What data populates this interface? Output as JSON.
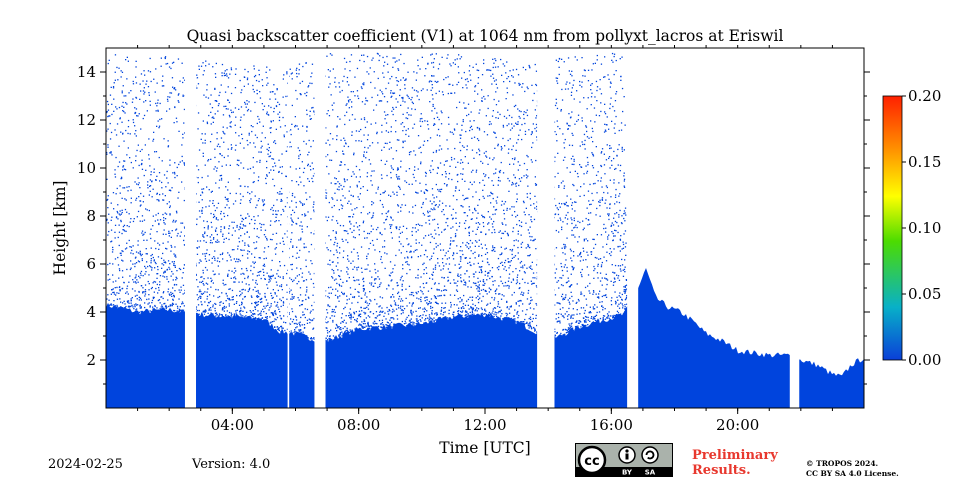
{
  "chart_data": {
    "type": "heatmap",
    "title": "Quasi backscatter coefficient (V1) at 1064 nm from pollyxt_lacros at Eriswil",
    "xlabel": "Time [UTC]",
    "ylabel": "Height [km]",
    "xlim_hours": [
      0,
      24
    ],
    "ylim_km": [
      0,
      15
    ],
    "x_ticks": [
      {
        "hour": 4,
        "label": "04:00"
      },
      {
        "hour": 8,
        "label": "08:00"
      },
      {
        "hour": 12,
        "label": "12:00"
      },
      {
        "hour": 16,
        "label": "16:00"
      },
      {
        "hour": 20,
        "label": "20:00"
      }
    ],
    "y_ticks": [
      {
        "km": 2,
        "label": "2"
      },
      {
        "km": 4,
        "label": "4"
      },
      {
        "km": 6,
        "label": "6"
      },
      {
        "km": 8,
        "label": "8"
      },
      {
        "km": 10,
        "label": "10"
      },
      {
        "km": 12,
        "label": "12"
      },
      {
        "km": 14,
        "label": "14"
      }
    ],
    "colorbar": {
      "min": 0.0,
      "max": 0.2,
      "ticks": [
        "0.00",
        "0.05",
        "0.10",
        "0.15",
        "0.20"
      ],
      "tick_values": [
        0.0,
        0.05,
        0.1,
        0.15,
        0.2
      ],
      "colors": [
        "#0a3fd8",
        "#08b0c8",
        "#4cdc00",
        "#ffff00",
        "#ff9000",
        "#ff2000"
      ]
    },
    "fill_color": "#0044dd",
    "data_gaps_hours": [
      [
        2.5,
        2.85
      ],
      [
        5.75,
        5.8
      ],
      [
        6.6,
        6.95
      ],
      [
        13.65,
        14.2
      ],
      [
        16.5,
        16.85
      ],
      [
        21.65,
        21.95
      ]
    ],
    "boundary_layer_top_km": [
      [
        0.0,
        4.3
      ],
      [
        1.0,
        4.0
      ],
      [
        2.0,
        4.1
      ],
      [
        3.0,
        3.9
      ],
      [
        4.0,
        3.8
      ],
      [
        5.0,
        3.7
      ],
      [
        5.5,
        3.2
      ],
      [
        6.0,
        3.1
      ],
      [
        6.5,
        2.9
      ],
      [
        7.0,
        2.8
      ],
      [
        8.0,
        3.3
      ],
      [
        9.0,
        3.4
      ],
      [
        10.0,
        3.5
      ],
      [
        11.0,
        3.8
      ],
      [
        12.0,
        3.9
      ],
      [
        13.0,
        3.6
      ],
      [
        13.6,
        3.2
      ],
      [
        14.2,
        2.9
      ],
      [
        15.0,
        3.4
      ],
      [
        15.8,
        3.7
      ],
      [
        16.4,
        3.9
      ],
      [
        16.85,
        5.0
      ],
      [
        17.1,
        5.8
      ],
      [
        17.4,
        4.6
      ],
      [
        17.8,
        4.2
      ],
      [
        18.2,
        4.0
      ],
      [
        18.6,
        3.6
      ],
      [
        19.0,
        3.1
      ],
      [
        19.5,
        2.8
      ],
      [
        20.0,
        2.4
      ],
      [
        20.5,
        2.3
      ],
      [
        21.0,
        2.2
      ],
      [
        21.6,
        2.2
      ],
      [
        22.0,
        2.0
      ],
      [
        22.5,
        1.8
      ],
      [
        23.0,
        1.4
      ],
      [
        23.3,
        1.3
      ],
      [
        23.6,
        1.8
      ],
      [
        24.0,
        2.1
      ]
    ],
    "signal_top_km": [
      [
        0.0,
        15.0
      ],
      [
        1.0,
        14.5
      ],
      [
        2.0,
        14.8
      ],
      [
        3.0,
        14.5
      ],
      [
        5.5,
        14.2
      ],
      [
        7.0,
        14.8
      ],
      [
        12.0,
        14.8
      ],
      [
        13.5,
        14.5
      ],
      [
        15.0,
        14.8
      ],
      [
        16.4,
        14.8
      ],
      [
        16.5,
        0.0
      ]
    ]
  },
  "footer": {
    "date": "2024-02-25",
    "version": "Version: 4.0",
    "preliminary_line1": "Preliminary",
    "preliminary_line2": "Results.",
    "copyright_line1": "© TROPOS 2024.",
    "copyright_line2": "CC BY SA 4.0 License.",
    "license_badge_cc": "cc",
    "license_badge_by": "BY",
    "license_badge_sa": "SA"
  }
}
